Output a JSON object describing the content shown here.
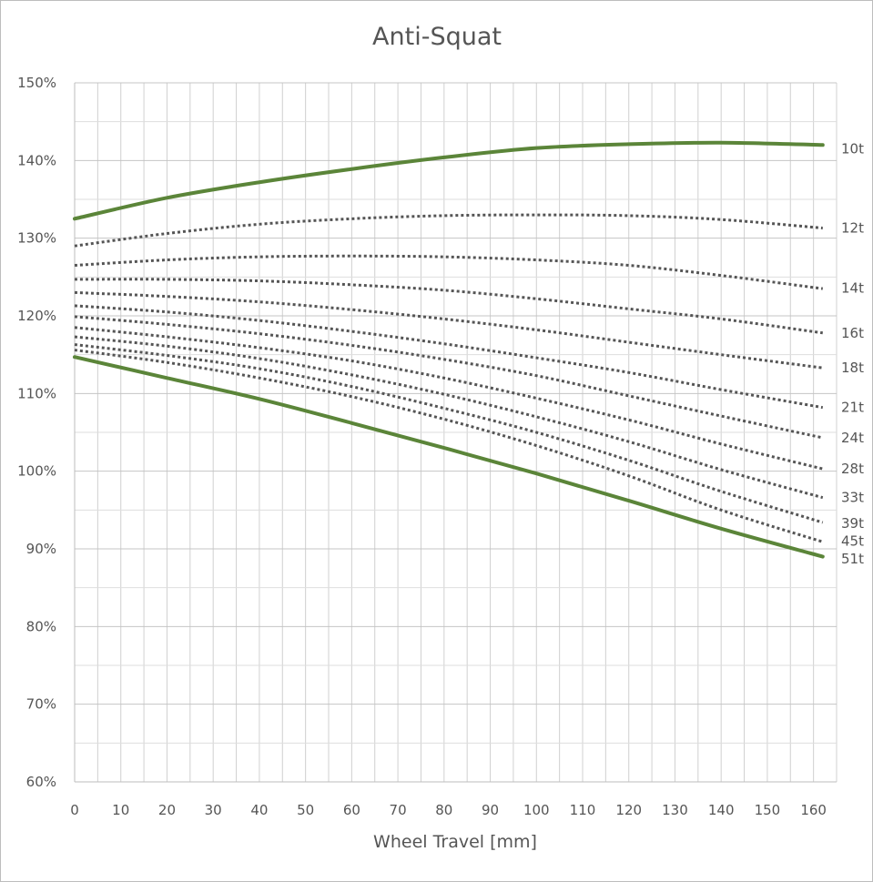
{
  "chart_data": {
    "type": "line",
    "title": "Anti-Squat",
    "xlabel": "Wheel Travel [mm]",
    "ylabel": "",
    "xlim": [
      0,
      165
    ],
    "ylim": [
      60,
      150
    ],
    "x_ticks": [
      0,
      10,
      20,
      30,
      40,
      50,
      60,
      70,
      80,
      90,
      100,
      110,
      120,
      130,
      140,
      150,
      160
    ],
    "x_tick_labels": [
      "0",
      "10",
      "20",
      "30",
      "40",
      "50",
      "60",
      "70",
      "80",
      "90",
      "100",
      "110",
      "120",
      "130",
      "140",
      "150",
      "160"
    ],
    "y_ticks": [
      60,
      70,
      80,
      90,
      100,
      110,
      120,
      130,
      140,
      150
    ],
    "y_tick_labels": [
      "60%",
      "70%",
      "80%",
      "90%",
      "100%",
      "110%",
      "120%",
      "130%",
      "140%",
      "150%"
    ],
    "grid": true,
    "x": [
      0,
      20,
      40,
      60,
      80,
      100,
      120,
      140,
      162
    ],
    "series": [
      {
        "name": "10t",
        "style": "solid",
        "color": "#5b8539",
        "values": [
          132.5,
          135.2,
          137.2,
          138.9,
          140.4,
          141.6,
          142.1,
          142.3,
          142.0
        ]
      },
      {
        "name": "12t",
        "style": "dotted",
        "color": "#555555",
        "values": [
          129.0,
          130.6,
          131.8,
          132.5,
          132.9,
          133.0,
          132.9,
          132.4,
          131.3
        ]
      },
      {
        "name": "14t",
        "style": "dotted",
        "color": "#555555",
        "values": [
          126.5,
          127.2,
          127.6,
          127.7,
          127.6,
          127.2,
          126.5,
          125.2,
          123.5
        ]
      },
      {
        "name": "16t",
        "style": "dotted",
        "color": "#555555",
        "values": [
          124.7,
          124.7,
          124.5,
          124.0,
          123.3,
          122.2,
          120.9,
          119.6,
          117.8
        ]
      },
      {
        "name": "18t",
        "style": "dotted",
        "color": "#555555",
        "values": [
          123.0,
          122.5,
          121.8,
          120.8,
          119.6,
          118.2,
          116.6,
          115.0,
          113.3
        ]
      },
      {
        "name": "21t",
        "style": "dotted",
        "color": "#555555",
        "values": [
          121.3,
          120.5,
          119.4,
          118.0,
          116.4,
          114.6,
          112.7,
          110.5,
          108.2
        ]
      },
      {
        "name": "24t",
        "style": "dotted",
        "color": "#555555",
        "values": [
          119.9,
          118.9,
          117.7,
          116.2,
          114.4,
          112.3,
          109.7,
          107.1,
          104.3
        ]
      },
      {
        "name": "28t",
        "style": "dotted",
        "color": "#555555",
        "values": [
          118.5,
          117.3,
          115.9,
          114.2,
          112.0,
          109.4,
          106.6,
          103.5,
          100.3
        ]
      },
      {
        "name": "33t",
        "style": "dotted",
        "color": "#555555",
        "values": [
          117.3,
          116.1,
          114.5,
          112.4,
          109.9,
          107.0,
          103.8,
          100.2,
          96.6
        ]
      },
      {
        "name": "39t",
        "style": "dotted",
        "color": "#555555",
        "values": [
          116.3,
          114.9,
          113.2,
          110.9,
          108.1,
          105.0,
          101.4,
          97.4,
          93.4
        ]
      },
      {
        "name": "45t",
        "style": "dotted",
        "color": "#555555",
        "values": [
          115.6,
          114.0,
          112.0,
          109.6,
          106.7,
          103.3,
          99.4,
          95.0,
          90.9
        ]
      },
      {
        "name": "51t",
        "style": "solid",
        "color": "#5b8539",
        "values": [
          114.7,
          112.0,
          109.3,
          106.2,
          103.0,
          99.7,
          96.2,
          92.6,
          89.0
        ]
      }
    ],
    "series_label_y": {
      "10t": 141.5,
      "12t": 131.3,
      "14t": 123.6,
      "16t": 117.8,
      "18t": 113.3,
      "21t": 108.2,
      "24t": 104.3,
      "28t": 100.3,
      "33t": 96.6,
      "39t": 93.3,
      "45t": 91.0,
      "51t": 88.7
    }
  }
}
